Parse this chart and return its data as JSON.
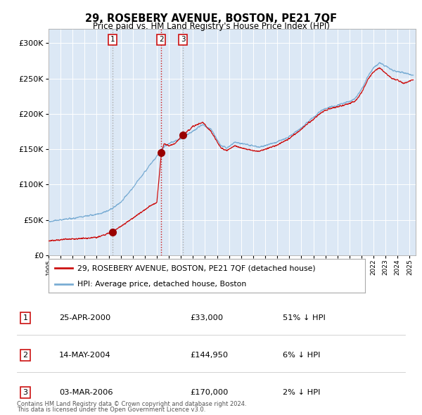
{
  "title": "29, ROSEBERY AVENUE, BOSTON, PE21 7QF",
  "subtitle": "Price paid vs. HM Land Registry's House Price Index (HPI)",
  "legend_line1": "29, ROSEBERY AVENUE, BOSTON, PE21 7QF (detached house)",
  "legend_line2": "HPI: Average price, detached house, Boston",
  "footer1": "Contains HM Land Registry data © Crown copyright and database right 2024.",
  "footer2": "This data is licensed under the Open Government Licence v3.0.",
  "table_rows": [
    [
      "1",
      "25-APR-2000",
      "£33,000",
      "51% ↓ HPI"
    ],
    [
      "2",
      "14-MAY-2004",
      "£144,950",
      "6% ↓ HPI"
    ],
    [
      "3",
      "03-MAR-2006",
      "£170,000",
      "2% ↓ HPI"
    ]
  ],
  "hpi_color": "#7aadd4",
  "price_color": "#cc1111",
  "fig_bg_color": "#ffffff",
  "plot_bg_color": "#dce8f5",
  "grid_color": "#ffffff",
  "vline1_color": "#aaaaaa",
  "vline1_style": "dotted",
  "vline2_color": "#cc1111",
  "vline2_style": "dotted",
  "vline3_color": "#aaaaaa",
  "vline3_style": "dotted",
  "marker_color": "#990000",
  "label_box_color": "#cc1111",
  "ylim": [
    0,
    320000
  ],
  "yticks": [
    0,
    50000,
    100000,
    150000,
    200000,
    250000,
    300000
  ],
  "xlim_start": 1995.0,
  "xlim_end": 2025.5,
  "sale1_x": 2000.32,
  "sale1_y": 33000,
  "sale2_x": 2004.37,
  "sale2_y": 144950,
  "sale3_x": 2006.17,
  "sale3_y": 170000
}
